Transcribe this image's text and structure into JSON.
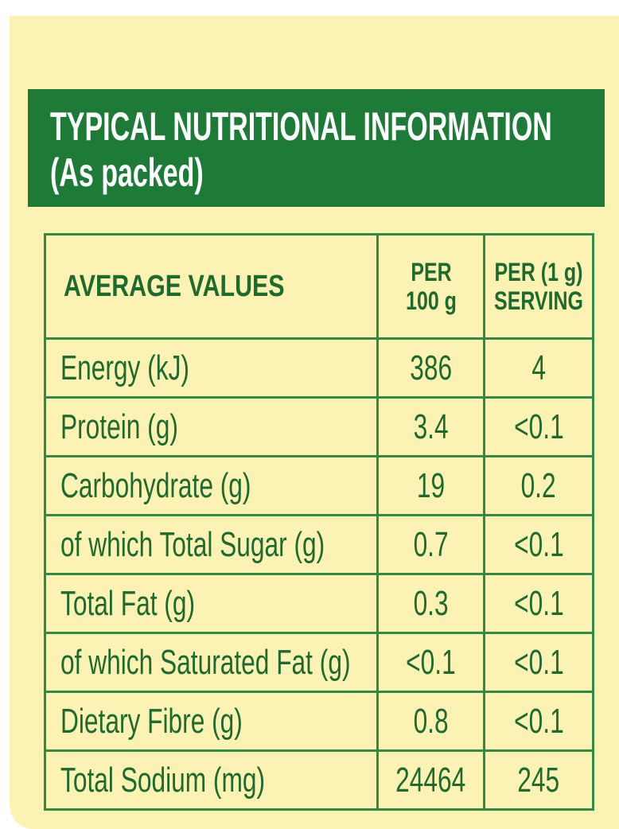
{
  "header": {
    "title": "TYPICAL NUTRITIONAL INFORMATION",
    "subtitle": "(As packed)"
  },
  "table": {
    "columns": [
      "AVERAGE VALUES",
      "PER 100 g",
      "PER (1 g) SERVING"
    ],
    "rows": [
      [
        "Energy (kJ)",
        "386",
        "4"
      ],
      [
        "Protein (g)",
        "3.4",
        "<0.1"
      ],
      [
        "Carbohydrate (g)",
        "19",
        "0.2"
      ],
      [
        "of which Total Sugar (g)",
        "0.7",
        "<0.1"
      ],
      [
        "Total Fat (g)",
        "0.3",
        "<0.1"
      ],
      [
        "of which Saturated Fat (g)",
        "<0.1",
        "<0.1"
      ],
      [
        "Dietary Fibre (g)",
        "0.8",
        "<0.1"
      ],
      [
        "Total Sodium (mg)",
        "24464",
        "245"
      ]
    ]
  }
}
